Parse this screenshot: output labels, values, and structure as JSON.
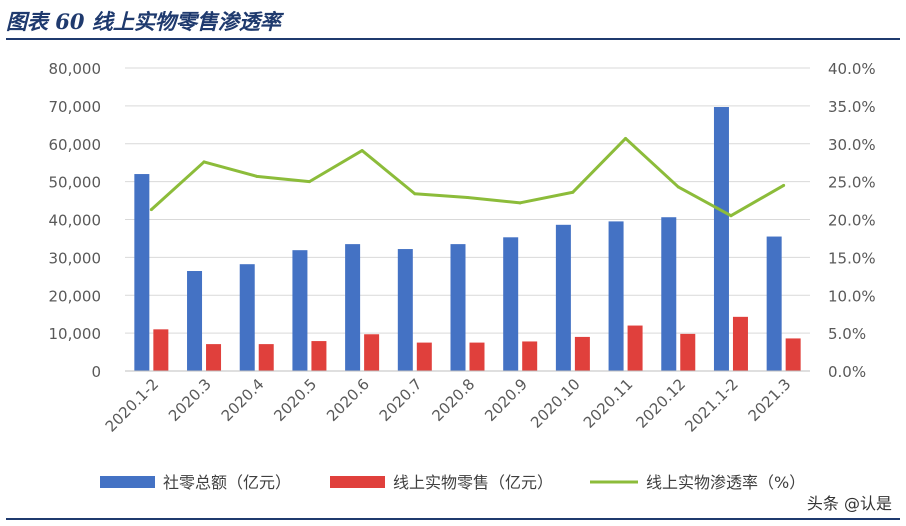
{
  "header": {
    "title": "图表 60 线上实物零售渗透率"
  },
  "watermark": "头条 @认是",
  "colors": {
    "series1": "#4472c4",
    "series2": "#e0403c",
    "series3": "#8cbc3a",
    "axis_text": "#595959",
    "grid": "#d9d9d9",
    "title": "#1f3a6e"
  },
  "chart_data": {
    "type": "bar",
    "categories": [
      "2020.1-2",
      "2020.3",
      "2020.4",
      "2020.5",
      "2020.6",
      "2020.7",
      "2020.8",
      "2020.9",
      "2020.10",
      "2020.11",
      "2020.12",
      "2021.1-2",
      "2021.3"
    ],
    "y_left": {
      "ylim": [
        0,
        80000
      ],
      "ticks": [
        "0",
        "10,000",
        "20,000",
        "30,000",
        "40,000",
        "50,000",
        "60,000",
        "70,000",
        "80,000"
      ]
    },
    "y_right": {
      "ylim": [
        0,
        0.4
      ],
      "ticks": [
        "0.0%",
        "5.0%",
        "10.0%",
        "15.0%",
        "20.0%",
        "25.0%",
        "30.0%",
        "35.0%",
        "40.0%"
      ]
    },
    "grid": true,
    "legend_position": "bottom",
    "series": [
      {
        "name": "社零总额（亿元）",
        "type": "bar",
        "axis": "left",
        "values": [
          52000,
          26400,
          28200,
          31900,
          33500,
          32200,
          33500,
          35300,
          38600,
          39500,
          40600,
          69700,
          35500
        ]
      },
      {
        "name": "线上实物零售（亿元）",
        "type": "bar",
        "axis": "left",
        "values": [
          11000,
          7100,
          7100,
          7900,
          9700,
          7500,
          7500,
          7800,
          9000,
          12000,
          9800,
          14300,
          8600
        ]
      },
      {
        "name": "线上实物渗透率（%）",
        "type": "line",
        "axis": "right",
        "values": [
          0.213,
          0.276,
          0.257,
          0.25,
          0.291,
          0.234,
          0.229,
          0.222,
          0.236,
          0.307,
          0.243,
          0.205,
          0.245
        ]
      }
    ]
  }
}
